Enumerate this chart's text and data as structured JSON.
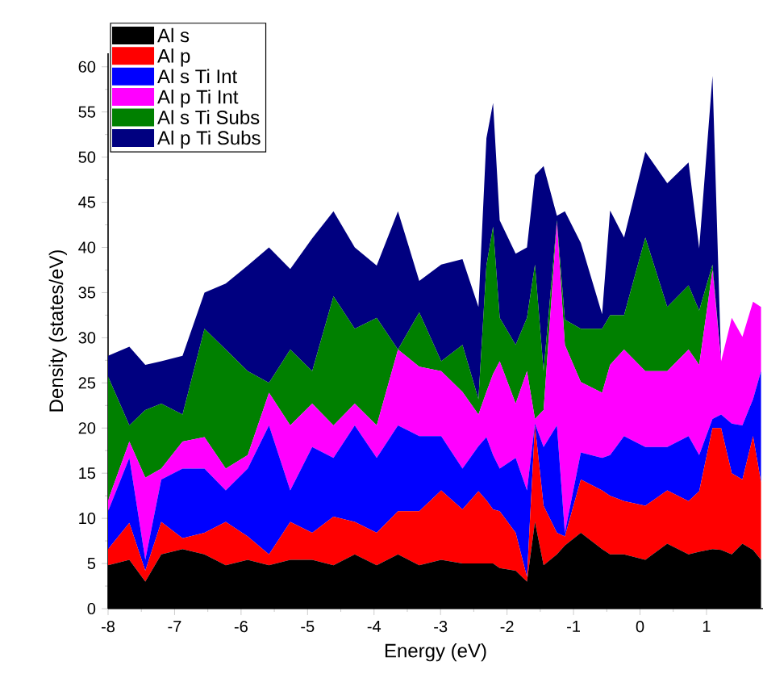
{
  "chart_data": {
    "type": "area",
    "stacked": true,
    "xlabel": "Energy (eV)",
    "ylabel": "Density (states/eV)",
    "x": [
      -8.0,
      -7.68,
      -7.44,
      -7.2,
      -6.88,
      -6.55,
      -6.23,
      -5.9,
      -5.58,
      -5.26,
      -4.93,
      -4.61,
      -4.29,
      -3.96,
      -3.64,
      -3.32,
      -2.99,
      -2.67,
      -2.43,
      -2.31,
      -2.21,
      -2.11,
      -1.87,
      -1.7,
      -1.58,
      -1.45,
      -1.25,
      -1.13,
      -0.89,
      -0.57,
      -0.45,
      -0.24,
      0.08,
      0.41,
      0.73,
      0.89,
      1.09,
      1.22,
      1.38,
      1.54,
      1.7,
      1.82
    ],
    "series": [
      {
        "name": "Al s",
        "color": "#000000",
        "values": [
          4.8,
          5.4,
          3,
          6,
          6.6,
          6,
          4.8,
          5.4,
          4.8,
          5.4,
          5.4,
          4.8,
          6,
          4.8,
          6,
          4.8,
          5.4,
          5,
          5,
          5,
          5,
          4.5,
          4.2,
          3,
          9.6,
          4.8,
          6,
          7,
          8.4,
          6.6,
          6,
          6,
          5.4,
          7.2,
          6,
          6.3,
          6.6,
          6.5,
          6,
          7.2,
          6.5,
          5.4
        ]
      },
      {
        "name": "Al p",
        "color": "#ff0000",
        "values": [
          1.8,
          4.1,
          1.2,
          3.6,
          1.2,
          2.4,
          4.8,
          2.6,
          1.2,
          4.2,
          3,
          5.4,
          3.6,
          3.6,
          4.8,
          6,
          7.7,
          6,
          8,
          7,
          6,
          6.3,
          4.2,
          0.5,
          10.7,
          6.6,
          2.4,
          1,
          5.9,
          6.5,
          6.5,
          5.9,
          6,
          5.9,
          5.9,
          6.7,
          13.4,
          13.5,
          9,
          7.1,
          12.6,
          8.6
        ]
      },
      {
        "name": "Al s Ti Int",
        "color": "#0000ff",
        "values": [
          4.2,
          7.2,
          1.2,
          4.7,
          7.7,
          7.1,
          3.5,
          7.5,
          14.3,
          3.5,
          9.5,
          6.5,
          10.7,
          8.3,
          9.5,
          8.3,
          6,
          4.5,
          5,
          7,
          6,
          4.7,
          8.3,
          9.6,
          0.2,
          6.5,
          11.9,
          0.4,
          3,
          3.6,
          4.5,
          7.2,
          6.5,
          4.8,
          7.2,
          4,
          1,
          1.5,
          5.5,
          6,
          4.1,
          12.3
        ]
      },
      {
        "name": "Al p Ti Int",
        "color": "#ff00ff",
        "values": [
          1.2,
          1.8,
          9.1,
          1.2,
          3,
          3.5,
          2.4,
          1.5,
          3.6,
          7.2,
          4.8,
          3.6,
          2.4,
          3.6,
          8.4,
          7.7,
          7.2,
          8.5,
          3.5,
          5,
          9,
          11.9,
          6,
          13.2,
          0.5,
          4.1,
          22.5,
          20.8,
          7.8,
          7.2,
          10,
          9.6,
          8.4,
          8.4,
          9.6,
          10,
          16.5,
          5.9,
          11.7,
          9.8,
          10.8,
          7.1
        ]
      },
      {
        "name": "Al s Ti Subs",
        "color": "#008000",
        "values": [
          13.7,
          1.8,
          7.5,
          7.2,
          3,
          12,
          13.2,
          9.3,
          1.1,
          8.4,
          3.6,
          14.3,
          8.3,
          11.9,
          0,
          6,
          1.1,
          5.2,
          1.7,
          14,
          16.3,
          4.8,
          6.5,
          5.9,
          17.1,
          4.3,
          0.2,
          2.8,
          5.9,
          7.1,
          5.5,
          3.8,
          14.8,
          7.1,
          7.1,
          6,
          0.6,
          0,
          0,
          0,
          0,
          0
        ]
      },
      {
        "name": "Al p Ti Subs",
        "color": "#000080",
        "values": [
          2.3,
          8.7,
          5,
          4.7,
          6.5,
          4,
          7.3,
          11.7,
          15,
          8.9,
          14.7,
          9.4,
          9,
          5.8,
          15.3,
          3.5,
          10.7,
          9.5,
          10.2,
          14.1,
          13.7,
          10.8,
          10.1,
          7.8,
          9.9,
          22.7,
          0.5,
          12,
          9.5,
          1.6,
          11.6,
          8.6,
          9.5,
          13.7,
          13.6,
          6.9,
          20.9,
          0,
          0,
          0,
          0,
          0
        ]
      }
    ],
    "xlim": [
      -8,
      1.85
    ],
    "ylim": [
      0,
      61.5
    ],
    "xticks": [
      -8,
      -7,
      -6,
      -5,
      -4,
      -3,
      -2,
      -1,
      0,
      1
    ],
    "yticks": [
      0,
      5,
      10,
      15,
      20,
      25,
      30,
      35,
      40,
      45,
      50,
      55,
      60
    ],
    "legend": "top left"
  }
}
